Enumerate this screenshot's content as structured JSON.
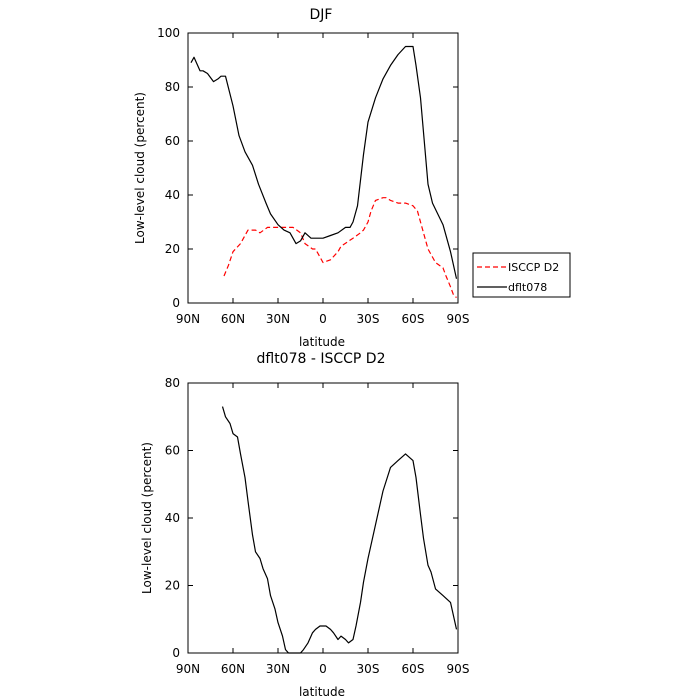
{
  "chart_data": [
    {
      "type": "line",
      "title": "DJF",
      "xlabel": "latitude",
      "ylabel": "Low-level cloud (percent)",
      "xticks": [
        "90N",
        "60N",
        "30N",
        "0",
        "30S",
        "60S",
        "90S"
      ],
      "xtick_values": [
        90,
        60,
        30,
        0,
        -30,
        -60,
        -90
      ],
      "xlim": [
        90,
        -90
      ],
      "ylim": [
        0,
        100
      ],
      "yticks": [
        0,
        20,
        40,
        60,
        80,
        100
      ],
      "legend_position": "outside-right",
      "series": [
        {
          "name": "ISCCP D2",
          "color": "#ff0000",
          "dash": "dashed",
          "x": [
            66,
            63,
            60,
            55,
            50,
            45,
            42,
            37,
            35,
            30,
            27,
            22,
            20,
            15,
            12,
            7,
            5,
            0,
            -5,
            -10,
            -12,
            -20,
            -25,
            -27,
            -30,
            -32,
            -35,
            -40,
            -42,
            -45,
            -50,
            -55,
            -60,
            -63,
            -67,
            -70,
            -75,
            -80,
            -82,
            -85,
            -87,
            -89
          ],
          "y": [
            10,
            14,
            19,
            22,
            27,
            27,
            26,
            28,
            28,
            28,
            28,
            28,
            28,
            26,
            22,
            20,
            20,
            15,
            16,
            19,
            21,
            24,
            26,
            27,
            30,
            34,
            38,
            39,
            39,
            38,
            37,
            37,
            36,
            34,
            26,
            20,
            15,
            13,
            10,
            6,
            3,
            2
          ]
        },
        {
          "name": "dflt078",
          "color": "#000000",
          "dash": "solid",
          "x": [
            88,
            86,
            82,
            80,
            77,
            73,
            70,
            68,
            65,
            60,
            56,
            52,
            47,
            43,
            38,
            35,
            30,
            26,
            22,
            18,
            15,
            12,
            8,
            5,
            2,
            0,
            -5,
            -10,
            -15,
            -18,
            -20,
            -23,
            -27,
            -30,
            -35,
            -40,
            -45,
            -50,
            -55,
            -60,
            -62,
            -65,
            -70,
            -73,
            -80,
            -85,
            -89
          ],
          "y": [
            89,
            91,
            86,
            86,
            85,
            82,
            83,
            84,
            84,
            73,
            62,
            56,
            51,
            44,
            37,
            33,
            29,
            27,
            26,
            22,
            23,
            26,
            24,
            24,
            24,
            24,
            25,
            26,
            28,
            28,
            30,
            36,
            55,
            67,
            76,
            83,
            88,
            92,
            95,
            95,
            88,
            76,
            44,
            37,
            29,
            19,
            9
          ]
        }
      ]
    },
    {
      "type": "line",
      "title": "dflt078 - ISCCP D2",
      "xlabel": "latitude",
      "ylabel": "Low-level cloud (percent)",
      "xticks": [
        "90N",
        "60N",
        "30N",
        "0",
        "30S",
        "60S",
        "90S"
      ],
      "xtick_values": [
        90,
        60,
        30,
        0,
        -30,
        -60,
        -90
      ],
      "xlim": [
        90,
        -90
      ],
      "ylim": [
        0,
        80
      ],
      "yticks": [
        0,
        20,
        40,
        60,
        80
      ],
      "series": [
        {
          "color": "#000000",
          "dash": "solid",
          "x": [
            67,
            65,
            62,
            60,
            57,
            55,
            52,
            50,
            47,
            45,
            42,
            40,
            37,
            35,
            32,
            30,
            27,
            25,
            23,
            20,
            18,
            15,
            13,
            10,
            7,
            5,
            2,
            0,
            -2,
            -5,
            -7,
            -10,
            -12,
            -15,
            -17,
            -20,
            -22,
            -25,
            -27,
            -30,
            -32,
            -35,
            -40,
            -45,
            -50,
            -55,
            -60,
            -62,
            -65,
            -67,
            -70,
            -72,
            -75,
            -80,
            -85,
            -87,
            -89
          ],
          "y": [
            73,
            70,
            68,
            65,
            64,
            59,
            52,
            45,
            35,
            30,
            28,
            25,
            22,
            17,
            13,
            9,
            5,
            1,
            0,
            0,
            0,
            0,
            1,
            3,
            6,
            7,
            8,
            8,
            8,
            7,
            6,
            4,
            5,
            4,
            3,
            4,
            8,
            15,
            21,
            28,
            32,
            38,
            48,
            55,
            57,
            59,
            57,
            52,
            41,
            34,
            26,
            24,
            19,
            17,
            15,
            11,
            7
          ]
        }
      ]
    }
  ]
}
